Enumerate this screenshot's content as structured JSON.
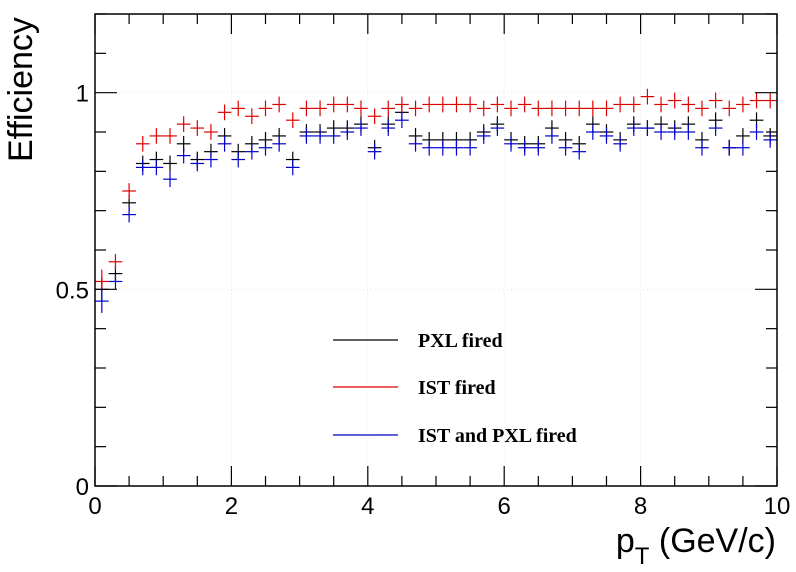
{
  "chart_data": {
    "type": "scatter",
    "xlabel": {
      "main": "p",
      "sub": "T",
      "rest": " (GeV/c)"
    },
    "ylabel": "Efficiency",
    "xlim": [
      0,
      10
    ],
    "ylim": [
      0,
      1.2
    ],
    "x_ticks": [
      0,
      2,
      4,
      6,
      8,
      10
    ],
    "x_tick_labels": [
      "0",
      "2",
      "4",
      "6",
      "8",
      "10"
    ],
    "y_ticks": [
      0,
      0.5,
      1
    ],
    "y_tick_labels": [
      "0",
      "0.5",
      "1"
    ],
    "grid": true,
    "legend_position": "center-bottom",
    "bin_width": 0.2,
    "x": [
      0.1,
      0.3,
      0.5,
      0.7,
      0.9,
      1.1,
      1.3,
      1.5,
      1.7,
      1.9,
      2.1,
      2.3,
      2.5,
      2.7,
      2.9,
      3.1,
      3.3,
      3.5,
      3.7,
      3.9,
      4.1,
      4.3,
      4.5,
      4.7,
      4.9,
      5.1,
      5.3,
      5.5,
      5.7,
      5.9,
      6.1,
      6.3,
      6.5,
      6.7,
      6.9,
      7.1,
      7.3,
      7.5,
      7.7,
      7.9,
      8.1,
      8.3,
      8.5,
      8.7,
      8.9,
      9.1,
      9.3,
      9.5,
      9.7,
      9.9
    ],
    "series": [
      {
        "name": "PXL fired",
        "color": "#000000",
        "values": [
          0.5,
          0.54,
          0.72,
          0.82,
          0.83,
          0.82,
          0.87,
          0.83,
          0.85,
          0.89,
          0.85,
          0.87,
          0.88,
          0.89,
          0.83,
          0.9,
          0.9,
          0.91,
          0.91,
          0.92,
          0.86,
          0.92,
          0.95,
          0.89,
          0.88,
          0.88,
          0.88,
          0.88,
          0.9,
          0.92,
          0.88,
          0.87,
          0.87,
          0.91,
          0.88,
          0.87,
          0.92,
          0.9,
          0.88,
          0.92,
          0.91,
          0.92,
          0.91,
          0.92,
          0.88,
          0.93,
          0.86,
          0.89,
          0.93,
          0.89
        ],
        "errors": [
          0.03,
          0.02,
          0.02,
          0.02,
          0.02,
          0.02,
          0.02,
          0.02,
          0.02,
          0.02,
          0.02,
          0.02,
          0.02,
          0.02,
          0.02,
          0.02,
          0.02,
          0.02,
          0.02,
          0.02,
          0.02,
          0.02,
          0.02,
          0.02,
          0.02,
          0.02,
          0.02,
          0.02,
          0.02,
          0.02,
          0.02,
          0.02,
          0.02,
          0.02,
          0.02,
          0.02,
          0.02,
          0.02,
          0.02,
          0.02,
          0.02,
          0.02,
          0.02,
          0.02,
          0.02,
          0.02,
          0.02,
          0.02,
          0.02,
          0.02
        ]
      },
      {
        "name": "IST fired",
        "color": "#e00000",
        "values": [
          0.52,
          0.57,
          0.75,
          0.87,
          0.89,
          0.89,
          0.92,
          0.91,
          0.9,
          0.95,
          0.96,
          0.94,
          0.96,
          0.97,
          0.93,
          0.96,
          0.96,
          0.97,
          0.97,
          0.96,
          0.94,
          0.96,
          0.97,
          0.96,
          0.97,
          0.97,
          0.97,
          0.97,
          0.96,
          0.97,
          0.96,
          0.97,
          0.96,
          0.96,
          0.96,
          0.96,
          0.96,
          0.96,
          0.97,
          0.97,
          0.99,
          0.97,
          0.98,
          0.97,
          0.96,
          0.98,
          0.96,
          0.97,
          0.98,
          0.98
        ],
        "errors": [
          0.03,
          0.02,
          0.02,
          0.02,
          0.02,
          0.02,
          0.02,
          0.02,
          0.02,
          0.02,
          0.02,
          0.02,
          0.02,
          0.02,
          0.02,
          0.02,
          0.02,
          0.02,
          0.02,
          0.02,
          0.02,
          0.02,
          0.02,
          0.02,
          0.02,
          0.02,
          0.02,
          0.02,
          0.02,
          0.02,
          0.02,
          0.02,
          0.02,
          0.02,
          0.02,
          0.02,
          0.02,
          0.02,
          0.02,
          0.02,
          0.02,
          0.02,
          0.02,
          0.02,
          0.02,
          0.02,
          0.02,
          0.02,
          0.02,
          0.02
        ]
      },
      {
        "name": "IST and PXL fired",
        "color": "#0000cc",
        "values": [
          0.47,
          0.52,
          0.69,
          0.81,
          0.81,
          0.78,
          0.84,
          0.82,
          0.83,
          0.87,
          0.83,
          0.85,
          0.86,
          0.87,
          0.81,
          0.89,
          0.89,
          0.89,
          0.9,
          0.91,
          0.85,
          0.91,
          0.93,
          0.87,
          0.86,
          0.86,
          0.86,
          0.86,
          0.89,
          0.91,
          0.87,
          0.86,
          0.86,
          0.89,
          0.86,
          0.85,
          0.9,
          0.89,
          0.87,
          0.91,
          0.91,
          0.9,
          0.9,
          0.9,
          0.86,
          0.91,
          0.86,
          0.86,
          0.9,
          0.88
        ],
        "errors": [
          0.03,
          0.02,
          0.02,
          0.02,
          0.02,
          0.02,
          0.02,
          0.02,
          0.02,
          0.02,
          0.02,
          0.02,
          0.02,
          0.02,
          0.02,
          0.02,
          0.02,
          0.02,
          0.02,
          0.02,
          0.02,
          0.02,
          0.02,
          0.02,
          0.02,
          0.02,
          0.02,
          0.02,
          0.02,
          0.02,
          0.02,
          0.02,
          0.02,
          0.02,
          0.02,
          0.02,
          0.02,
          0.02,
          0.02,
          0.02,
          0.02,
          0.02,
          0.02,
          0.02,
          0.02,
          0.02,
          0.02,
          0.02,
          0.02,
          0.02
        ]
      }
    ]
  }
}
